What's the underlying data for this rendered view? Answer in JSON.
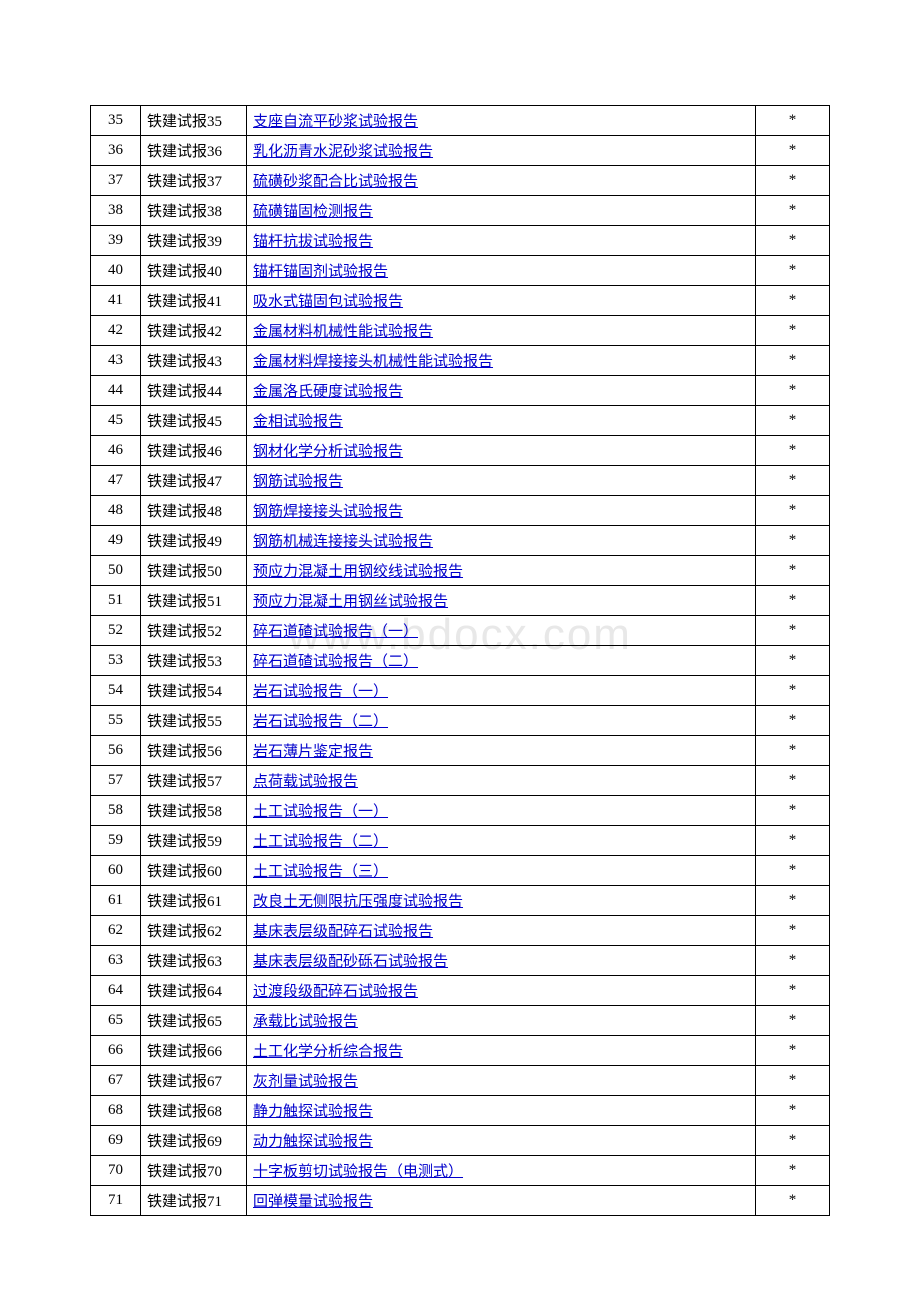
{
  "watermark_text": "www.bdocx.com",
  "columns": [
    "index",
    "code",
    "name",
    "mark"
  ],
  "code_prefix": "铁建试报",
  "mark_symbol": "*",
  "link_color": "#0000cc",
  "text_color": "#000000",
  "border_color": "#000000",
  "rows": [
    {
      "idx": "35",
      "code": "铁建试报35",
      "name": "  支座自流平砂浆试验报告",
      "link": true,
      "mark": "*"
    },
    {
      "idx": "36",
      "code": "铁建试报36",
      "name": "  乳化沥青水泥砂浆试验报告",
      "link": true,
      "mark": "*"
    },
    {
      "idx": "37",
      "code": "铁建试报37",
      "name": "  硫磺砂浆配合比试验报告",
      "link": true,
      "mark": "*"
    },
    {
      "idx": "38",
      "code": "铁建试报38",
      "name": "  硫磺锚固检测报告",
      "link": true,
      "mark": "*"
    },
    {
      "idx": "39",
      "code": "铁建试报39",
      "name": "  锚杆抗拔试验报告",
      "link": true,
      "mark": "*"
    },
    {
      "idx": "40",
      "code": "铁建试报40",
      "name": "  锚杆锚固剂试验报告",
      "link": true,
      "mark": "*"
    },
    {
      "idx": "41",
      "code": "铁建试报41",
      "name": "  吸水式锚固包试验报告",
      "link": true,
      "mark": "*"
    },
    {
      "idx": "42",
      "code": "铁建试报42",
      "name": "  金属材料机械性能试验报告",
      "link": true,
      "mark": "*"
    },
    {
      "idx": "43",
      "code": "铁建试报43",
      "name": "  金属材料焊接接头机械性能试验报告",
      "link": true,
      "mark": "*"
    },
    {
      "idx": "44",
      "code": "铁建试报44",
      "name": "  金属洛氏硬度试验报告",
      "link": true,
      "mark": "*"
    },
    {
      "idx": "45",
      "code": "铁建试报45",
      "name": "  金相试验报告",
      "link": true,
      "mark": "*"
    },
    {
      "idx": "46",
      "code": "铁建试报46",
      "name": "  钢材化学分析试验报告",
      "link": true,
      "mark": "*"
    },
    {
      "idx": "47",
      "code": "铁建试报47",
      "name": "  钢筋试验报告",
      "link": true,
      "mark": "*"
    },
    {
      "idx": "48",
      "code": "铁建试报48",
      "name": "  钢筋焊接接头试验报告",
      "link": true,
      "mark": "*"
    },
    {
      "idx": "49",
      "code": "铁建试报49",
      "name": "  钢筋机械连接接头试验报告",
      "link": true,
      "mark": "*"
    },
    {
      "idx": "50",
      "code": "铁建试报50",
      "name": "  预应力混凝土用钢绞线试验报告",
      "link": true,
      "mark": "*"
    },
    {
      "idx": "51",
      "code": "铁建试报51",
      "name": "  预应力混凝土用钢丝试验报告",
      "link": true,
      "mark": "*"
    },
    {
      "idx": "52",
      "code": "铁建试报52",
      "name": "  碎石道碴试验报告（一）",
      "link": true,
      "mark": "*"
    },
    {
      "idx": "53",
      "code": "铁建试报53",
      "name": "  碎石道碴试验报告（二）",
      "link": true,
      "mark": "*"
    },
    {
      "idx": "54",
      "code": "铁建试报54",
      "name": "  岩石试验报告（一）",
      "link": true,
      "mark": "*"
    },
    {
      "idx": "55",
      "code": "铁建试报55",
      "name": "  岩石试验报告（二）",
      "link": true,
      "mark": "*"
    },
    {
      "idx": "56",
      "code": "铁建试报56",
      "name": "  岩石薄片鉴定报告",
      "link": true,
      "mark": "*"
    },
    {
      "idx": "57",
      "code": "铁建试报57",
      "name": "  点荷载试验报告",
      "link": true,
      "mark": "*"
    },
    {
      "idx": "58",
      "code": "铁建试报58",
      "name": "  土工试验报告（一）",
      "link": true,
      "mark": "*"
    },
    {
      "idx": "59",
      "code": "铁建试报59",
      "name": "  土工试验报告（二）",
      "link": true,
      "mark": "*"
    },
    {
      "idx": "60",
      "code": "铁建试报60",
      "name": "  土工试验报告（三）",
      "link": true,
      "mark": "*"
    },
    {
      "idx": "61",
      "code": "铁建试报61",
      "name": "改良土无侧限抗压强度试验报告",
      "link": true,
      "mark": "*"
    },
    {
      "idx": "62",
      "code": "铁建试报62",
      "name": "  基床表层级配碎石试验报告",
      "link": true,
      "mark": "*"
    },
    {
      "idx": "63",
      "code": "铁建试报63",
      "name": "  基床表层级配砂砾石试验报告",
      "link": true,
      "mark": "*"
    },
    {
      "idx": "64",
      "code": "铁建试报64",
      "name": "  过渡段级配碎石试验报告",
      "link": true,
      "mark": "*"
    },
    {
      "idx": "65",
      "code": "铁建试报65",
      "name": "  承载比试验报告",
      "link": true,
      "mark": "*"
    },
    {
      "idx": "66",
      "code": "铁建试报66",
      "name": "  土工化学分析综合报告",
      "link": true,
      "mark": "*"
    },
    {
      "idx": "67",
      "code": "铁建试报67",
      "name": "灰剂量试验报告",
      "link": true,
      "mark": "*"
    },
    {
      "idx": "68",
      "code": "铁建试报68",
      "name": "  静力触探试验报告",
      "link": true,
      "mark": "*"
    },
    {
      "idx": "69",
      "code": "铁建试报69",
      "name": "  动力触探试验报告",
      "link": true,
      "mark": "*"
    },
    {
      "idx": "70",
      "code": "铁建试报70",
      "name": "  十字板剪切试验报告（电测式）",
      "link": true,
      "mark": "*"
    },
    {
      "idx": "71",
      "code": "铁建试报71",
      "name": "  回弹模量试验报告",
      "link": true,
      "mark": "*"
    }
  ]
}
